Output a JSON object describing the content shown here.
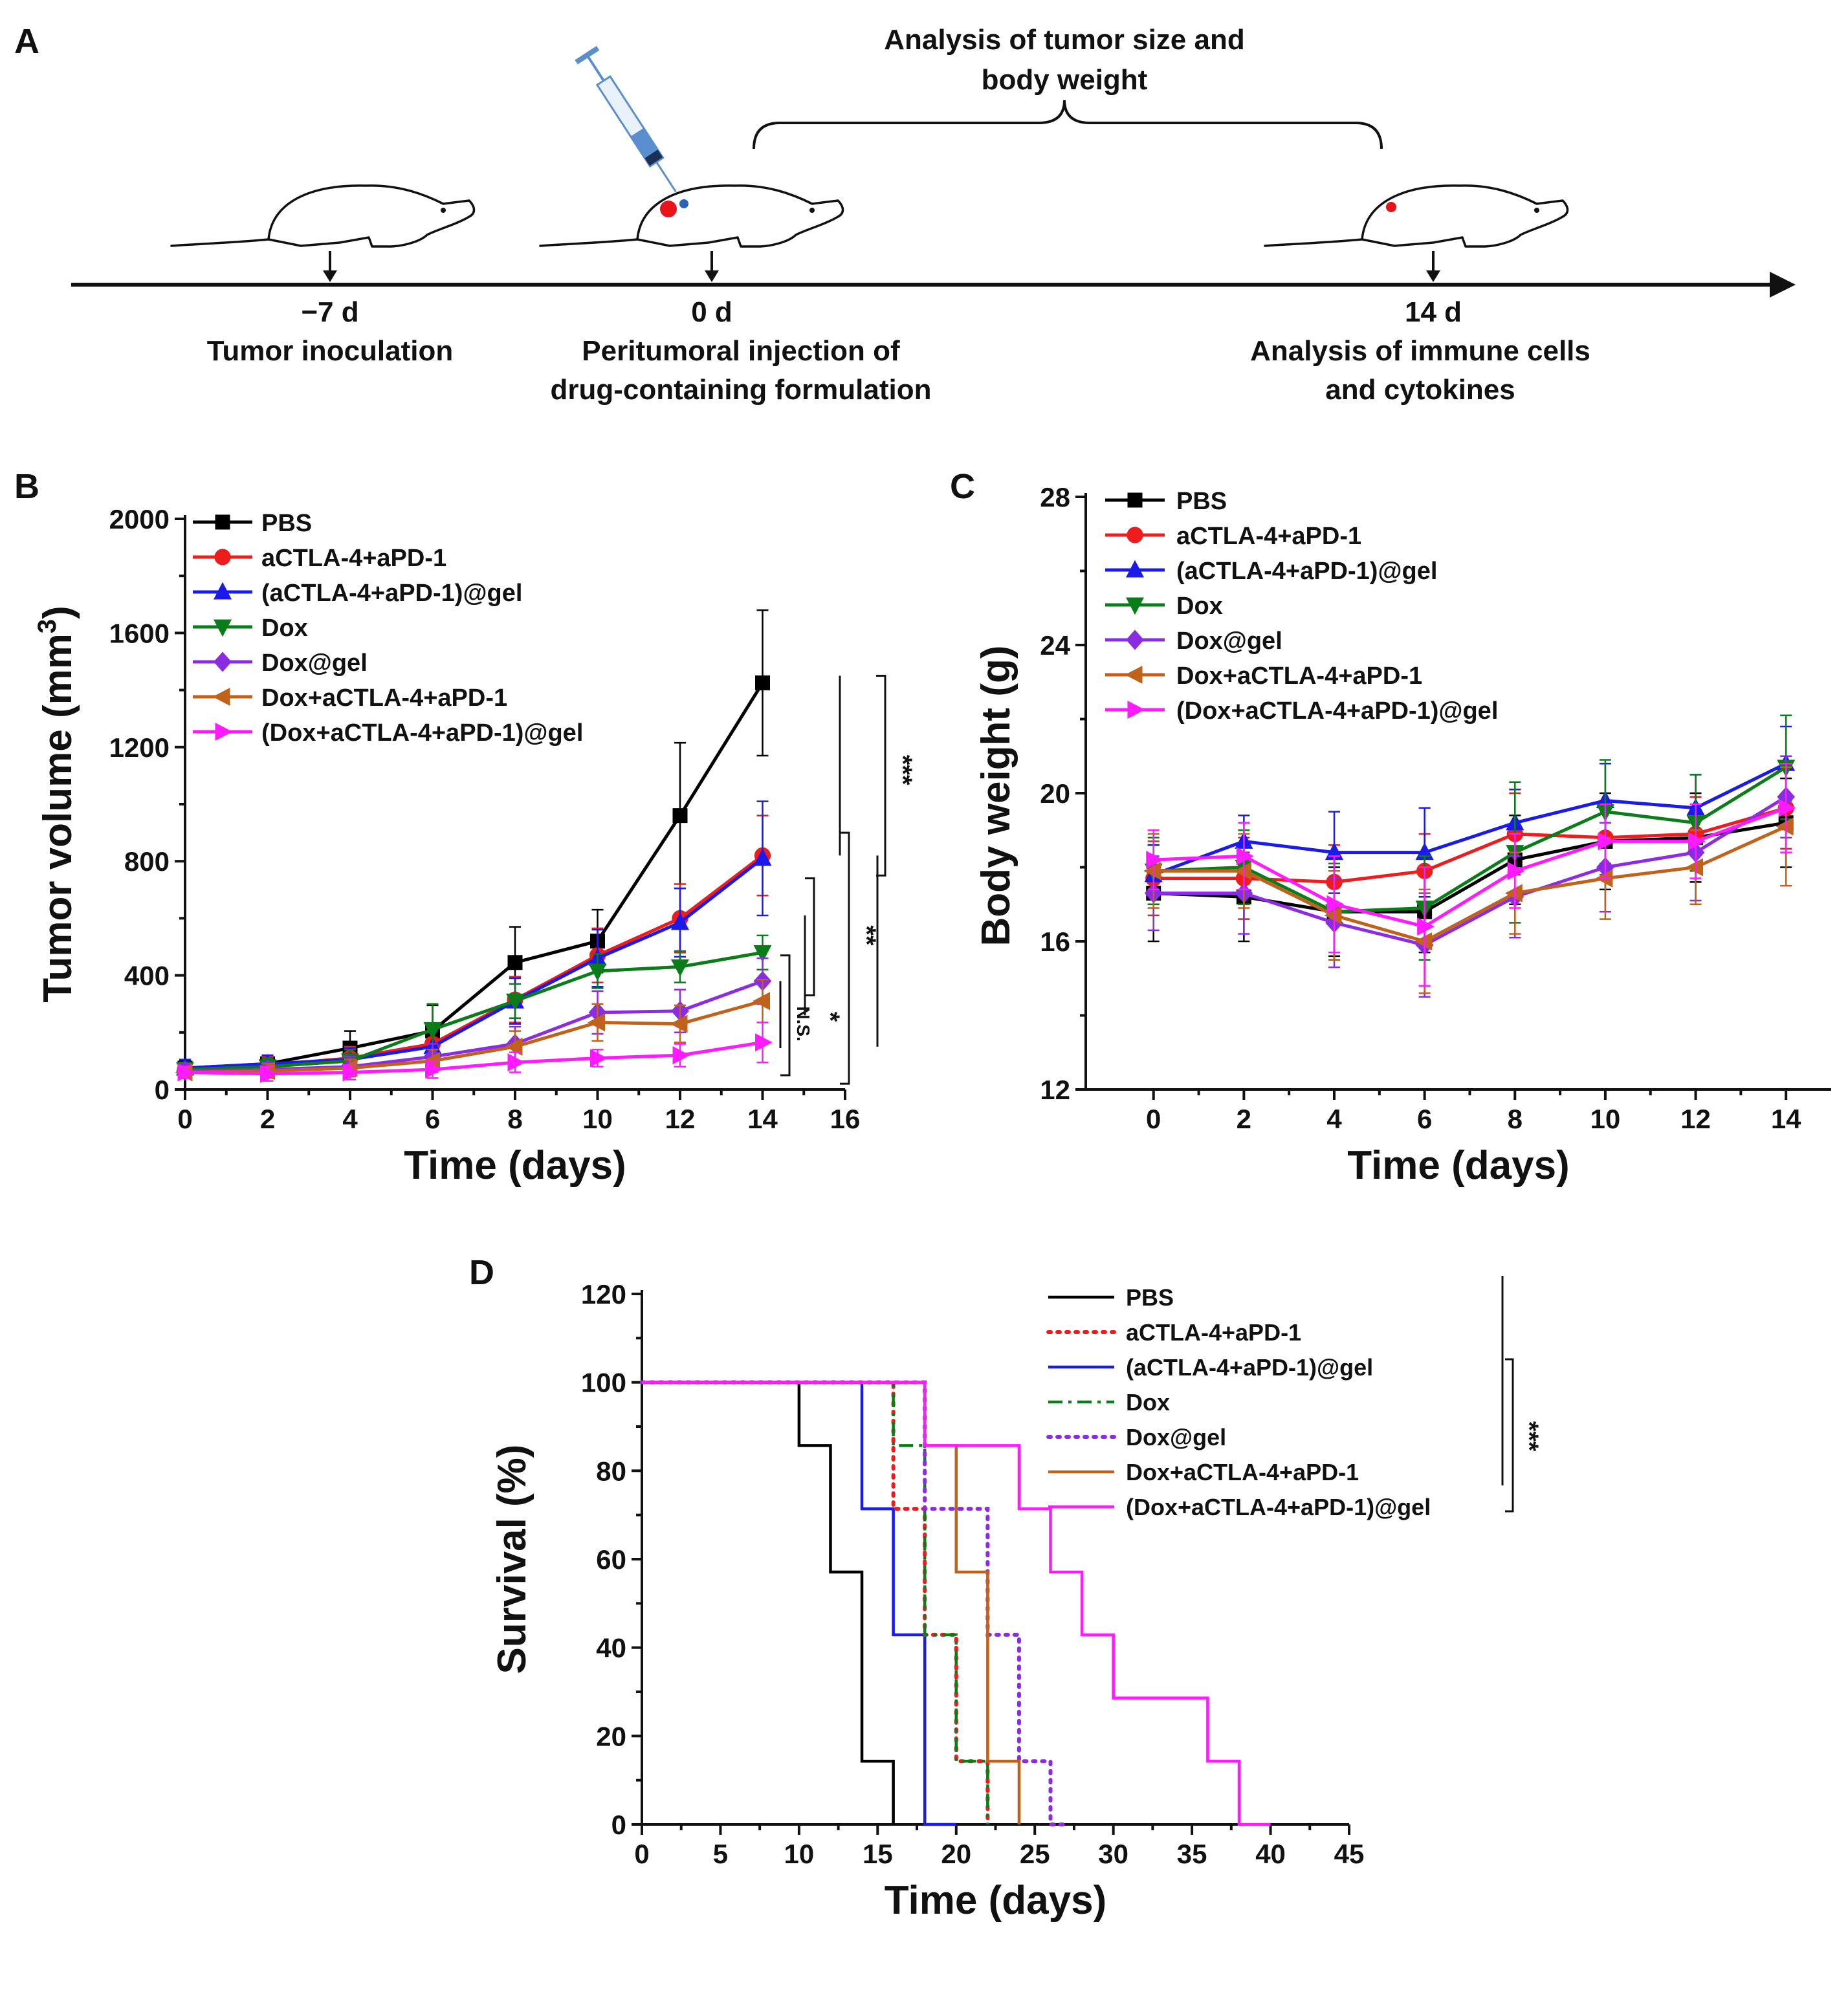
{
  "panel_letters": {
    "a": "A",
    "b": "B",
    "c": "C",
    "d": "D"
  },
  "timeline": {
    "bracket_label_line1": "Analysis of tumor size and",
    "bracket_label_line2": "body weight",
    "points": [
      {
        "day": "−7 d",
        "label1": "Tumor inoculation",
        "label2": ""
      },
      {
        "day": "0 d",
        "label1": "Peritumoral injection of",
        "label2": "drug-containing formulation"
      },
      {
        "day": "14 d",
        "label1": "Analysis of immune cells",
        "label2": "and cytokines"
      }
    ],
    "colors": {
      "tumor": "#e8141b",
      "drug": "#2a62b8",
      "syringe": "#5a8fcf"
    },
    "icons": [
      "mouse-icon",
      "syringe-icon",
      "arrow-icon"
    ]
  },
  "chart_data": [
    {
      "panel": "B",
      "type": "line",
      "title": "",
      "xlabel": "Time (days)",
      "ylabel_main": "Tumor volume (mm",
      "ylabel_sup": "3",
      "ylabel_close": ")",
      "xlim": [
        0,
        16
      ],
      "ylim": [
        0,
        2000
      ],
      "xticks": [
        0,
        2,
        4,
        6,
        8,
        10,
        12,
        14,
        16
      ],
      "yticks": [
        0,
        400,
        800,
        1200,
        1600,
        2000
      ],
      "x": [
        0,
        2,
        4,
        6,
        8,
        10,
        12,
        14
      ],
      "legend_position": "top-left",
      "series": [
        {
          "name": "PBS",
          "color": "#000000",
          "marker": "square",
          "values": [
            75,
            90,
            145,
            205,
            445,
            520,
            960,
            1425
          ],
          "errors": [
            25,
            30,
            60,
            90,
            125,
            110,
            255,
            255
          ]
        },
        {
          "name": "aCTLA-4+aPD-1",
          "color": "#ee1c1c",
          "marker": "circle",
          "values": [
            70,
            85,
            110,
            160,
            315,
            470,
            600,
            820
          ],
          "errors": [
            25,
            30,
            40,
            60,
            80,
            95,
            120,
            140
          ]
        },
        {
          "name": "(aCTLA-4+aPD-1)@gel",
          "color": "#1a1aeb",
          "marker": "triangle-up",
          "values": [
            75,
            90,
            105,
            150,
            310,
            460,
            585,
            810
          ],
          "errors": [
            30,
            30,
            40,
            55,
            80,
            100,
            120,
            200
          ]
        },
        {
          "name": "Dox",
          "color": "#0a7d1a",
          "marker": "triangle-down",
          "values": [
            70,
            80,
            100,
            210,
            310,
            415,
            430,
            480
          ],
          "errors": [
            25,
            30,
            40,
            90,
            60,
            60,
            55,
            60
          ]
        },
        {
          "name": "Dox@gel",
          "color": "#8b2be2",
          "marker": "diamond",
          "values": [
            65,
            70,
            80,
            115,
            160,
            270,
            275,
            380
          ],
          "errors": [
            25,
            25,
            35,
            45,
            60,
            75,
            75,
            80
          ]
        },
        {
          "name": "Dox+aCTLA-4+aPD-1",
          "color": "#c0611c",
          "marker": "triangle-left",
          "values": [
            60,
            65,
            75,
            100,
            150,
            235,
            230,
            310
          ],
          "errors": [
            20,
            25,
            30,
            40,
            55,
            65,
            65,
            75
          ]
        },
        {
          "name": "(Dox+aCTLA-4+aPD-1)@gel",
          "color": "#ff1aff",
          "marker": "triangle-right",
          "values": [
            60,
            55,
            60,
            70,
            95,
            110,
            120,
            165
          ],
          "errors": [
            20,
            25,
            25,
            30,
            35,
            30,
            40,
            70
          ]
        }
      ],
      "significance": [
        "N.S.",
        "*",
        "**",
        "***"
      ]
    },
    {
      "panel": "C",
      "type": "line",
      "title": "",
      "xlabel": "Time (days)",
      "ylabel": "Body weight (g)",
      "xlim": [
        -1.5,
        15
      ],
      "ylim": [
        12,
        28
      ],
      "xticks": [
        0,
        2,
        4,
        6,
        8,
        10,
        12,
        14
      ],
      "yticks": [
        12,
        16,
        20,
        24,
        28
      ],
      "x": [
        0,
        2,
        4,
        6,
        8,
        10,
        12,
        14
      ],
      "legend_position": "top-left",
      "series": [
        {
          "name": "PBS",
          "color": "#000000",
          "marker": "square",
          "values": [
            17.3,
            17.2,
            16.8,
            16.8,
            18.2,
            18.7,
            18.8,
            19.2
          ],
          "errors": [
            1.3,
            1.2,
            1.2,
            1.1,
            1.2,
            1.3,
            1.2,
            1.2
          ]
        },
        {
          "name": "aCTLA-4+aPD-1",
          "color": "#ee1c1c",
          "marker": "circle",
          "values": [
            17.7,
            17.7,
            17.6,
            17.9,
            18.9,
            18.8,
            18.9,
            19.6
          ],
          "errors": [
            1.0,
            1.1,
            1.0,
            1.0,
            1.1,
            1.0,
            1.0,
            1.1
          ]
        },
        {
          "name": "(aCTLA-4+aPD-1)@gel",
          "color": "#1a1aeb",
          "marker": "triangle-up",
          "values": [
            17.8,
            18.7,
            18.4,
            18.4,
            19.2,
            19.8,
            19.6,
            20.8
          ],
          "errors": [
            0.8,
            0.7,
            1.1,
            1.2,
            0.9,
            1.0,
            0.9,
            1.0
          ]
        },
        {
          "name": "Dox",
          "color": "#0a7d1a",
          "marker": "triangle-down",
          "values": [
            17.9,
            18.0,
            16.8,
            16.9,
            18.4,
            19.5,
            19.2,
            20.7
          ],
          "errors": [
            0.9,
            1.0,
            1.3,
            1.4,
            1.9,
            1.4,
            1.3,
            1.4
          ]
        },
        {
          "name": "Dox@gel",
          "color": "#8b2be2",
          "marker": "diamond",
          "values": [
            17.3,
            17.3,
            16.5,
            15.9,
            17.2,
            18.0,
            18.4,
            19.9
          ],
          "errors": [
            1.0,
            1.1,
            1.2,
            1.4,
            1.1,
            1.2,
            1.3,
            1.1
          ]
        },
        {
          "name": "Dox+aCTLA-4+aPD-1",
          "color": "#c0611c",
          "marker": "triangle-left",
          "values": [
            17.9,
            17.9,
            16.7,
            16.0,
            17.3,
            17.7,
            18.0,
            19.1
          ],
          "errors": [
            1.0,
            1.0,
            1.2,
            1.4,
            1.1,
            1.1,
            1.0,
            1.6
          ]
        },
        {
          "name": "(Dox+aCTLA-4+aPD-1)@gel",
          "color": "#ff1aff",
          "marker": "triangle-right",
          "values": [
            18.2,
            18.3,
            17.0,
            16.4,
            17.9,
            18.7,
            18.7,
            19.6
          ],
          "errors": [
            0.8,
            0.9,
            1.3,
            1.6,
            1.0,
            1.0,
            1.0,
            1.2
          ]
        }
      ]
    },
    {
      "panel": "D",
      "type": "line",
      "subtype": "kaplan-meier",
      "title": "",
      "xlabel": "Time (days)",
      "ylabel": "Survival (%)",
      "xlim": [
        0,
        45
      ],
      "ylim": [
        0,
        120
      ],
      "xticks": [
        0,
        5,
        10,
        15,
        20,
        25,
        30,
        35,
        40,
        45
      ],
      "yticks": [
        0,
        20,
        40,
        60,
        80,
        100,
        120
      ],
      "legend_position": "top-right",
      "series": [
        {
          "name": "PBS",
          "color": "#000000",
          "dash": "solid",
          "x": [
            0,
            10,
            12,
            14,
            16
          ],
          "values": [
            100,
            85.7,
            57.1,
            14.3,
            0
          ],
          "end": 16
        },
        {
          "name": "aCTLA-4+aPD-1",
          "color": "#ee1c1c",
          "dash": "dotted",
          "x": [
            0,
            16,
            18,
            20,
            22
          ],
          "values": [
            100,
            71.4,
            42.9,
            14.3,
            0
          ],
          "end": 22
        },
        {
          "name": "(aCTLA-4+aPD-1)@gel",
          "color": "#1a1aeb",
          "dash": "solid",
          "x": [
            0,
            14,
            16,
            18
          ],
          "values": [
            100,
            71.4,
            42.9,
            0
          ],
          "end": 20
        },
        {
          "name": "Dox",
          "color": "#0a7d1a",
          "dash": "dashdot",
          "x": [
            0,
            16,
            18,
            20,
            22
          ],
          "values": [
            100,
            85.7,
            42.9,
            14.3,
            0
          ],
          "end": 22
        },
        {
          "name": "Dox@gel",
          "color": "#8b2be2",
          "dash": "dotted",
          "x": [
            0,
            18,
            22,
            24,
            26
          ],
          "values": [
            100,
            71.4,
            42.9,
            14.3,
            0
          ],
          "end": 27
        },
        {
          "name": "Dox+aCTLA-4+aPD-1",
          "color": "#c0611c",
          "dash": "solid",
          "x": [
            0,
            18,
            20,
            22,
            24
          ],
          "values": [
            100,
            85.7,
            57.1,
            14.3,
            0
          ],
          "end": 24
        },
        {
          "name": "(Dox+aCTLA-4+aPD-1)@gel",
          "color": "#ff1aff",
          "dash": "solid",
          "x": [
            0,
            18,
            24,
            26,
            28,
            30,
            36,
            38
          ],
          "values": [
            100,
            85.7,
            71.4,
            57.1,
            42.9,
            28.6,
            14.3,
            0
          ],
          "end": 40
        }
      ],
      "significance": [
        "***"
      ]
    }
  ]
}
